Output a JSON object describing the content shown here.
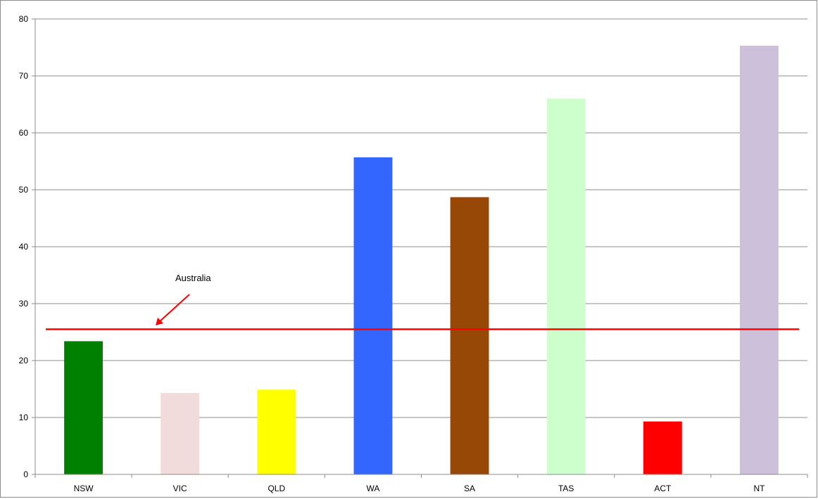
{
  "chart_data": {
    "type": "bar",
    "title": "",
    "xlabel": "",
    "ylabel": "",
    "categories": [
      "NSW",
      "VIC",
      "QLD",
      "WA",
      "SA",
      "TAS",
      "ACT",
      "NT"
    ],
    "values": [
      23.4,
      14.3,
      14.9,
      55.7,
      48.7,
      66.0,
      9.3,
      75.3
    ],
    "bar_colors": [
      "#008000",
      "#f2dcdb",
      "#ffff00",
      "#3366ff",
      "#974806",
      "#ccffcc",
      "#ff0000",
      "#ccc0da"
    ],
    "ylim": [
      0,
      80
    ],
    "yticks": [
      0,
      10,
      20,
      30,
      40,
      50,
      60,
      70,
      80
    ],
    "grid": true,
    "legend": "none",
    "reference_line": {
      "label": "Australia",
      "value": 25.5,
      "color": "#ff0000"
    }
  }
}
